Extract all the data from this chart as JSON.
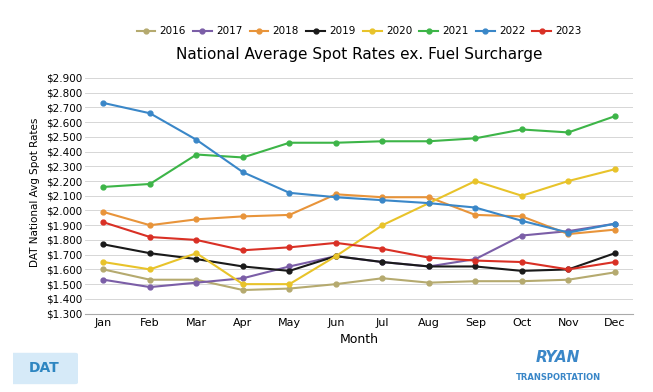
{
  "title": "National Average Spot Rates ex. Fuel Surcharge",
  "xlabel": "Month",
  "ylabel": "DAT National Avg Spot Rates",
  "months": [
    "Jan",
    "Feb",
    "Mar",
    "Apr",
    "May",
    "Jun",
    "Jul",
    "Aug",
    "Sep",
    "Oct",
    "Nov",
    "Dec"
  ],
  "ylim": [
    1.3,
    2.95
  ],
  "yticks": [
    1.3,
    1.4,
    1.5,
    1.6,
    1.7,
    1.8,
    1.9,
    2.0,
    2.1,
    2.2,
    2.3,
    2.4,
    2.5,
    2.6,
    2.7,
    2.8,
    2.9
  ],
  "series": {
    "2016": {
      "color": "#b5aa6f",
      "values": [
        1.6,
        1.53,
        1.53,
        1.46,
        1.47,
        1.5,
        1.54,
        1.51,
        1.52,
        1.52,
        1.53,
        1.58
      ]
    },
    "2017": {
      "color": "#7b5ea7",
      "values": [
        1.53,
        1.48,
        1.51,
        1.54,
        1.62,
        1.69,
        1.65,
        1.62,
        1.67,
        1.83,
        1.86,
        1.91
      ]
    },
    "2018": {
      "color": "#e8943a",
      "values": [
        1.99,
        1.9,
        1.94,
        1.96,
        1.97,
        2.11,
        2.09,
        2.09,
        1.97,
        1.96,
        1.84,
        1.87
      ]
    },
    "2019": {
      "color": "#1a1a1a",
      "values": [
        1.77,
        1.71,
        1.67,
        1.62,
        1.59,
        1.69,
        1.65,
        1.62,
        1.62,
        1.59,
        1.6,
        1.71
      ]
    },
    "2020": {
      "color": "#e8c32a",
      "values": [
        1.65,
        1.6,
        1.71,
        1.5,
        1.5,
        1.69,
        1.9,
        2.05,
        2.2,
        2.1,
        2.2,
        2.28
      ]
    },
    "2021": {
      "color": "#3db548",
      "values": [
        2.16,
        2.18,
        2.38,
        2.36,
        2.46,
        2.46,
        2.47,
        2.47,
        2.49,
        2.55,
        2.53,
        2.64
      ]
    },
    "2022": {
      "color": "#3a87c8",
      "values": [
        2.73,
        2.66,
        2.48,
        2.26,
        2.12,
        2.09,
        2.07,
        2.05,
        2.02,
        1.93,
        1.85,
        1.91
      ]
    },
    "2023": {
      "color": "#d93025",
      "values": [
        1.92,
        1.82,
        1.8,
        1.73,
        1.75,
        1.78,
        1.74,
        1.68,
        1.66,
        1.65,
        1.6,
        1.65
      ]
    }
  },
  "legend_order": [
    "2016",
    "2017",
    "2018",
    "2019",
    "2020",
    "2021",
    "2022",
    "2023"
  ],
  "background_color": "#ffffff",
  "grid_color": "#d0d0d0"
}
